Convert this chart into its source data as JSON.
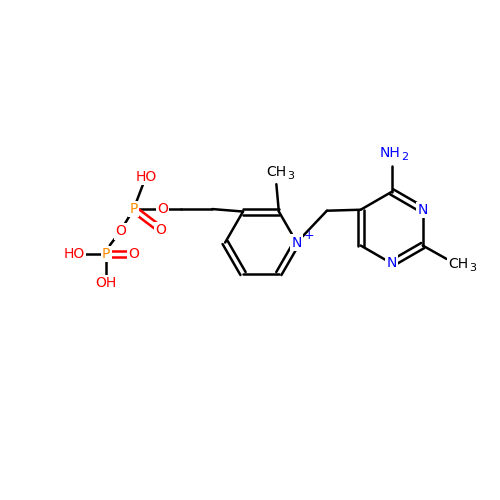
{
  "background_color": "#ffffff",
  "bond_color": "#000000",
  "nitrogen_color": "#0000ff",
  "oxygen_color": "#ff0000",
  "phosphorus_color": "#ff8c00",
  "figsize": [
    5.0,
    5.0
  ],
  "dpi": 100,
  "bond_lw": 1.8,
  "font_size": 10,
  "sub_font_size": 7,
  "xlim": [
    0,
    10
  ],
  "ylim": [
    0,
    10
  ]
}
